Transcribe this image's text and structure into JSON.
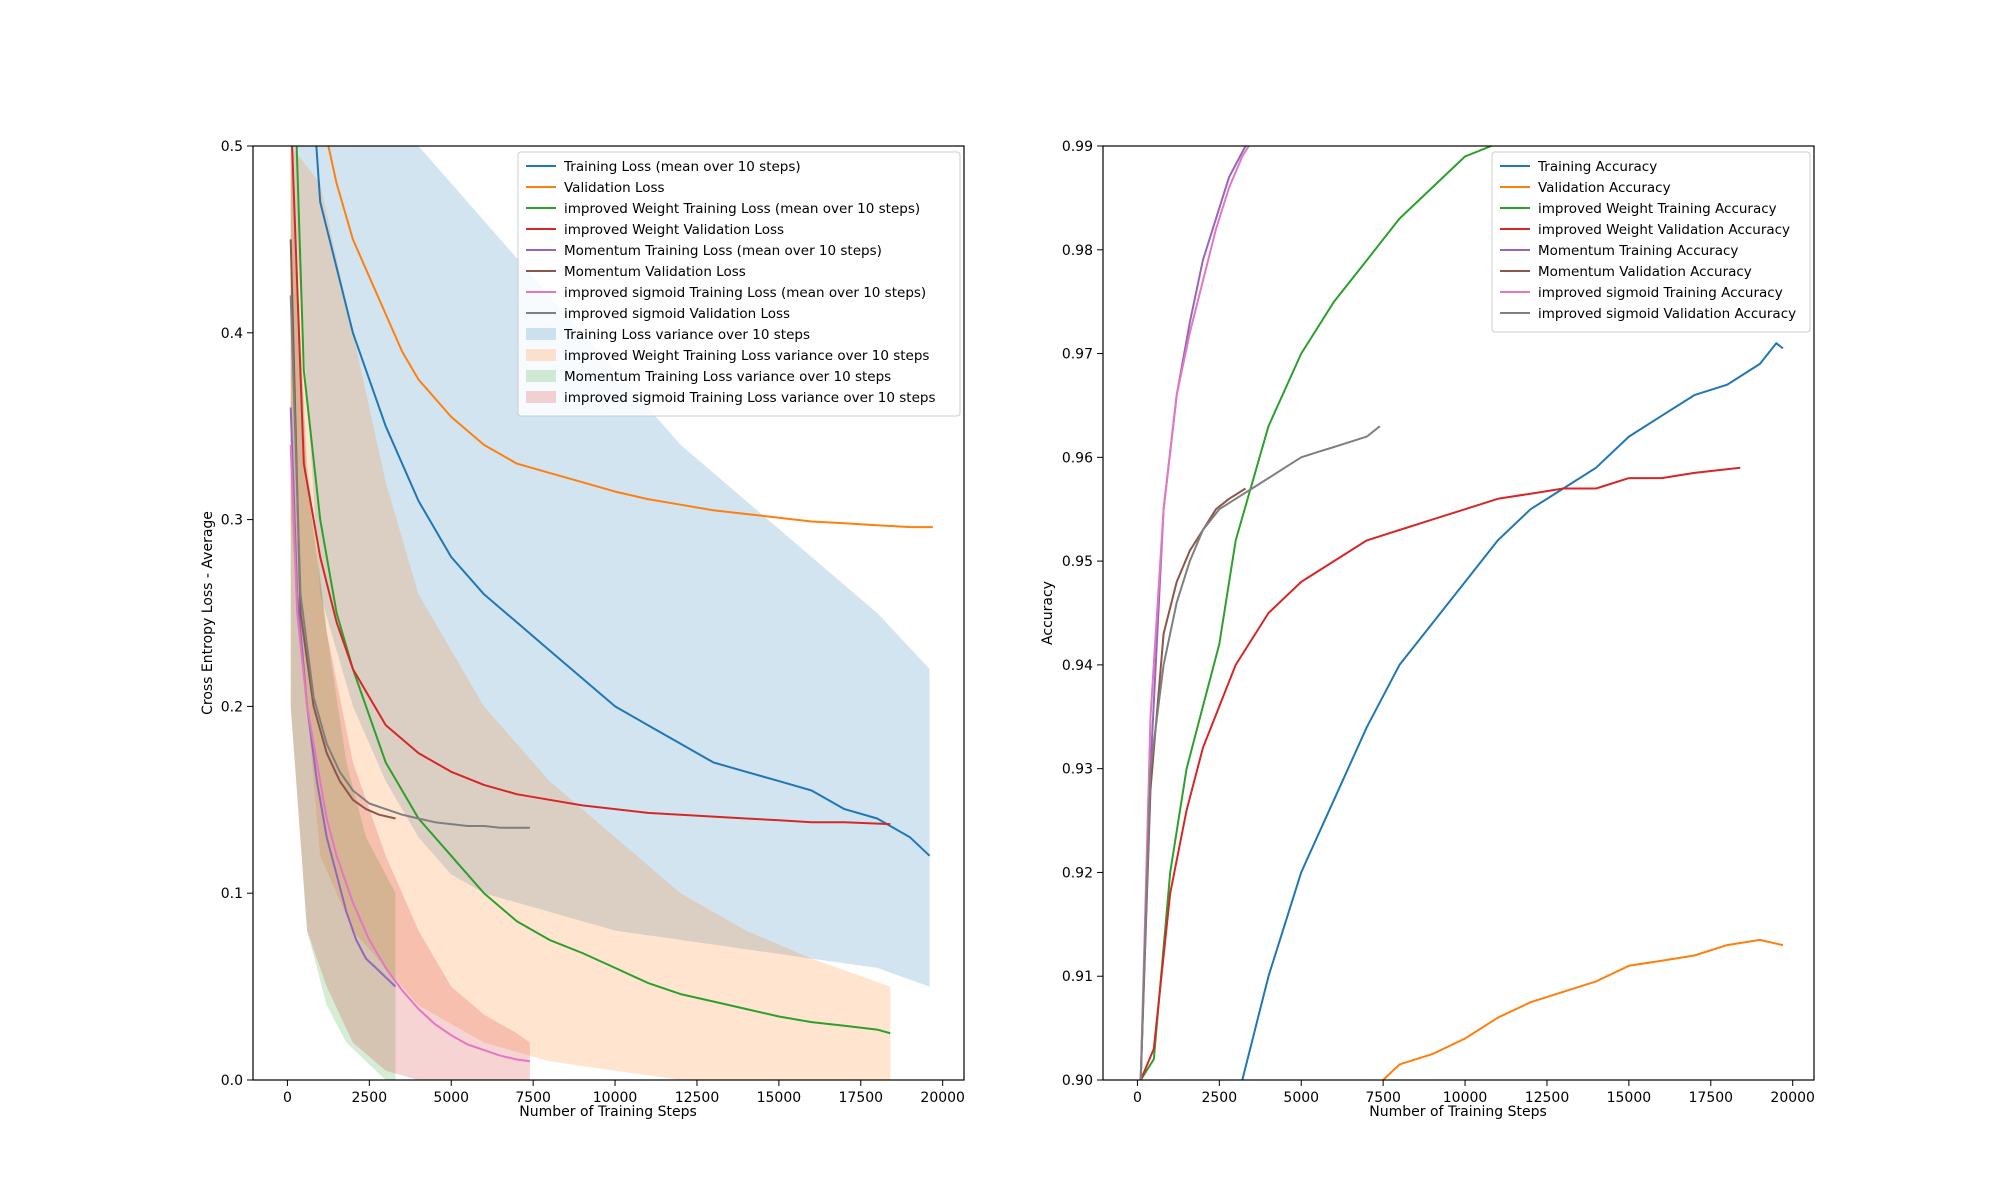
{
  "chart_data": [
    {
      "type": "line",
      "title": "",
      "xlabel": "Number of Training Steps",
      "ylabel": "Cross Entropy Loss - Average",
      "xlim": [
        -1050,
        20650
      ],
      "ylim": [
        0.0,
        0.5
      ],
      "xticks": [
        0,
        2500,
        5000,
        7500,
        10000,
        12500,
        15000,
        17500,
        20000
      ],
      "yticks": [
        0.0,
        0.1,
        0.2,
        0.3,
        0.4,
        0.5
      ],
      "grid": false,
      "legend_position": "top-right",
      "series": [
        {
          "name": "Training Loss (mean over 10 steps)",
          "color": "#1f77b4",
          "kind": "line",
          "x": [
            100,
            1000,
            2000,
            3000,
            4000,
            5000,
            6000,
            7000,
            8000,
            9000,
            10000,
            11000,
            12000,
            13000,
            14000,
            15000,
            16000,
            17000,
            18000,
            19000,
            19600
          ],
          "y": [
            0.7,
            0.47,
            0.4,
            0.35,
            0.31,
            0.28,
            0.26,
            0.245,
            0.23,
            0.215,
            0.2,
            0.19,
            0.18,
            0.17,
            0.165,
            0.16,
            0.155,
            0.145,
            0.14,
            0.13,
            0.12
          ]
        },
        {
          "name": "Validation Loss",
          "color": "#ff7f0e",
          "kind": "line",
          "x": [
            500,
            1000,
            1500,
            2000,
            2500,
            3000,
            3500,
            4000,
            5000,
            6000,
            7000,
            8000,
            9000,
            10000,
            11000,
            12000,
            13000,
            14000,
            15000,
            16000,
            17000,
            18000,
            19000,
            19700
          ],
          "y": [
            0.62,
            0.52,
            0.48,
            0.45,
            0.43,
            0.41,
            0.39,
            0.375,
            0.355,
            0.34,
            0.33,
            0.325,
            0.32,
            0.315,
            0.311,
            0.308,
            0.305,
            0.303,
            0.301,
            0.299,
            0.298,
            0.297,
            0.296,
            0.296
          ]
        },
        {
          "name": "improved Weight Training Loss (mean over 10 steps)",
          "color": "#2ca02c",
          "kind": "line",
          "x": [
            100,
            500,
            1000,
            1500,
            2000,
            3000,
            4000,
            5000,
            6000,
            7000,
            8000,
            9000,
            10000,
            11000,
            12000,
            13000,
            14000,
            15000,
            16000,
            17000,
            18000,
            18400
          ],
          "y": [
            0.6,
            0.38,
            0.3,
            0.25,
            0.22,
            0.17,
            0.14,
            0.12,
            0.1,
            0.085,
            0.075,
            0.068,
            0.06,
            0.052,
            0.046,
            0.042,
            0.038,
            0.034,
            0.031,
            0.029,
            0.027,
            0.025
          ]
        },
        {
          "name": "improved Weight Validation Loss",
          "color": "#d62728",
          "kind": "line",
          "x": [
            100,
            500,
            1000,
            1500,
            2000,
            2500,
            3000,
            4000,
            5000,
            6000,
            7000,
            8000,
            9000,
            10000,
            11000,
            12000,
            13000,
            14000,
            15000,
            16000,
            17000,
            18400
          ],
          "y": [
            0.52,
            0.33,
            0.28,
            0.245,
            0.22,
            0.205,
            0.19,
            0.175,
            0.165,
            0.158,
            0.153,
            0.15,
            0.147,
            0.145,
            0.143,
            0.142,
            0.141,
            0.14,
            0.139,
            0.138,
            0.138,
            0.137
          ]
        },
        {
          "name": "Momentum Training Loss (mean over 10 steps)",
          "color": "#9467bd",
          "kind": "line",
          "x": [
            100,
            300,
            600,
            900,
            1200,
            1500,
            1800,
            2100,
            2400,
            2700,
            3000,
            3300
          ],
          "y": [
            0.36,
            0.26,
            0.2,
            0.16,
            0.13,
            0.11,
            0.09,
            0.075,
            0.065,
            0.06,
            0.055,
            0.05
          ]
        },
        {
          "name": "Momentum Validation Loss",
          "color": "#8c564b",
          "kind": "line",
          "x": [
            100,
            400,
            800,
            1200,
            1600,
            2000,
            2400,
            2800,
            3300
          ],
          "y": [
            0.45,
            0.25,
            0.2,
            0.175,
            0.16,
            0.15,
            0.145,
            0.142,
            0.14
          ]
        },
        {
          "name": "improved sigmoid Training Loss (mean over 10 steps)",
          "color": "#e377c2",
          "kind": "line",
          "x": [
            100,
            300,
            600,
            900,
            1200,
            1500,
            2000,
            2500,
            3000,
            3500,
            4000,
            4500,
            5000,
            5500,
            6000,
            6500,
            7000,
            7400
          ],
          "y": [
            0.34,
            0.25,
            0.2,
            0.17,
            0.14,
            0.12,
            0.095,
            0.075,
            0.06,
            0.048,
            0.038,
            0.03,
            0.024,
            0.019,
            0.016,
            0.013,
            0.011,
            0.01
          ]
        },
        {
          "name": "improved sigmoid Validation Loss",
          "color": "#7f7f7f",
          "kind": "line",
          "x": [
            100,
            400,
            800,
            1200,
            1600,
            2000,
            2500,
            3000,
            3500,
            4000,
            4500,
            5000,
            5500,
            6000,
            6500,
            7000,
            7400
          ],
          "y": [
            0.42,
            0.26,
            0.205,
            0.18,
            0.165,
            0.155,
            0.148,
            0.145,
            0.142,
            0.14,
            0.138,
            0.137,
            0.136,
            0.136,
            0.135,
            0.135,
            0.135
          ]
        },
        {
          "name": "Training Loss variance over 10 steps",
          "color": "#1f77b4",
          "kind": "band",
          "x": [
            100,
            1000,
            2000,
            3000,
            4000,
            5000,
            6000,
            8000,
            10000,
            12000,
            14000,
            16000,
            18000,
            19600
          ],
          "lower": [
            0.5,
            0.26,
            0.2,
            0.16,
            0.13,
            0.11,
            0.1,
            0.09,
            0.08,
            0.075,
            0.07,
            0.065,
            0.06,
            0.05
          ],
          "upper": [
            0.5,
            0.5,
            0.5,
            0.5,
            0.5,
            0.48,
            0.46,
            0.42,
            0.38,
            0.34,
            0.31,
            0.28,
            0.25,
            0.22
          ]
        },
        {
          "name": "improved Weight Training Loss variance over 10 steps",
          "color": "#ff7f0e",
          "kind": "band",
          "x": [
            100,
            1000,
            2000,
            3000,
            4000,
            6000,
            8000,
            10000,
            12000,
            14000,
            16000,
            18400
          ],
          "lower": [
            0.3,
            0.12,
            0.08,
            0.06,
            0.04,
            0.02,
            0.01,
            0.005,
            0.0,
            0.0,
            0.0,
            0.0
          ],
          "upper": [
            0.5,
            0.48,
            0.4,
            0.32,
            0.26,
            0.2,
            0.16,
            0.13,
            0.1,
            0.08,
            0.065,
            0.05
          ]
        },
        {
          "name": "Momentum Training Loss variance over 10 steps",
          "color": "#2ca02c",
          "kind": "band",
          "x": [
            100,
            600,
            1200,
            1800,
            2400,
            3000,
            3300
          ],
          "lower": [
            0.2,
            0.08,
            0.04,
            0.02,
            0.01,
            0.0,
            0.0
          ],
          "upper": [
            0.5,
            0.33,
            0.24,
            0.17,
            0.13,
            0.11,
            0.1
          ]
        },
        {
          "name": "improved sigmoid Training Loss variance over 10 steps",
          "color": "#d62728",
          "kind": "band",
          "x": [
            100,
            600,
            1200,
            2000,
            3000,
            4000,
            5000,
            6000,
            7000,
            7400
          ],
          "lower": [
            0.2,
            0.08,
            0.05,
            0.02,
            0.005,
            0.0,
            0.0,
            0.0,
            0.0,
            0.0
          ],
          "upper": [
            0.5,
            0.32,
            0.24,
            0.17,
            0.12,
            0.08,
            0.05,
            0.035,
            0.025,
            0.02
          ]
        }
      ]
    },
    {
      "type": "line",
      "title": "",
      "xlabel": "Number of Training Steps",
      "ylabel": "Accuracy",
      "xlim": [
        -1050,
        20650
      ],
      "ylim": [
        0.9,
        0.99
      ],
      "xticks": [
        0,
        2500,
        5000,
        7500,
        10000,
        12500,
        15000,
        17500,
        20000
      ],
      "yticks": [
        0.9,
        0.91,
        0.92,
        0.93,
        0.94,
        0.95,
        0.96,
        0.97,
        0.98,
        0.99
      ],
      "grid": false,
      "legend_position": "top-right",
      "series": [
        {
          "name": "Training Accuracy",
          "color": "#1f77b4",
          "kind": "line",
          "x": [
            3200,
            4000,
            5000,
            6000,
            7000,
            8000,
            9000,
            10000,
            11000,
            12000,
            13000,
            14000,
            15000,
            16000,
            17000,
            18000,
            19000,
            19500,
            19700
          ],
          "y": [
            0.9,
            0.91,
            0.92,
            0.927,
            0.934,
            0.94,
            0.944,
            0.948,
            0.952,
            0.955,
            0.957,
            0.959,
            0.962,
            0.964,
            0.966,
            0.967,
            0.969,
            0.971,
            0.9705
          ]
        },
        {
          "name": "Validation Accuracy",
          "color": "#ff7f0e",
          "kind": "line",
          "x": [
            7500,
            8000,
            9000,
            10000,
            11000,
            12000,
            13000,
            14000,
            15000,
            16000,
            17000,
            18000,
            19000,
            19700
          ],
          "y": [
            0.9,
            0.9015,
            0.9025,
            0.904,
            0.906,
            0.9075,
            0.9085,
            0.9095,
            0.911,
            0.9115,
            0.912,
            0.913,
            0.9135,
            0.913
          ]
        },
        {
          "name": "improved Weight Training Accuracy",
          "color": "#2ca02c",
          "kind": "line",
          "x": [
            100,
            500,
            1000,
            1500,
            2000,
            2500,
            3000,
            4000,
            5000,
            6000,
            7000,
            8000,
            9000,
            10000,
            10800
          ],
          "y": [
            0.9,
            0.902,
            0.92,
            0.93,
            0.936,
            0.942,
            0.952,
            0.963,
            0.97,
            0.975,
            0.979,
            0.983,
            0.986,
            0.989,
            0.99
          ]
        },
        {
          "name": "improved Weight Validation Accuracy",
          "color": "#d62728",
          "kind": "line",
          "x": [
            100,
            500,
            1000,
            1500,
            2000,
            2500,
            3000,
            4000,
            5000,
            6000,
            7000,
            8000,
            9000,
            10000,
            11000,
            12000,
            13000,
            14000,
            15000,
            16000,
            17000,
            18400
          ],
          "y": [
            0.9,
            0.903,
            0.918,
            0.926,
            0.932,
            0.936,
            0.94,
            0.945,
            0.948,
            0.95,
            0.952,
            0.953,
            0.954,
            0.955,
            0.956,
            0.9565,
            0.957,
            0.957,
            0.958,
            0.958,
            0.9585,
            0.959
          ]
        },
        {
          "name": "Momentum Training Accuracy",
          "color": "#9467bd",
          "kind": "line",
          "x": [
            100,
            400,
            800,
            1200,
            1600,
            2000,
            2400,
            2800,
            3300
          ],
          "y": [
            0.9,
            0.93,
            0.955,
            0.966,
            0.973,
            0.979,
            0.983,
            0.987,
            0.99
          ]
        },
        {
          "name": "Momentum Validation Accuracy",
          "color": "#8c564b",
          "kind": "line",
          "x": [
            100,
            400,
            800,
            1200,
            1600,
            2000,
            2400,
            2800,
            3300
          ],
          "y": [
            0.9,
            0.928,
            0.943,
            0.948,
            0.951,
            0.953,
            0.955,
            0.956,
            0.957
          ]
        },
        {
          "name": "improved sigmoid Training Accuracy",
          "color": "#e377c2",
          "kind": "line",
          "x": [
            100,
            400,
            800,
            1200,
            1600,
            2000,
            2400,
            2800,
            3200,
            3400
          ],
          "y": [
            0.9,
            0.935,
            0.955,
            0.966,
            0.972,
            0.977,
            0.982,
            0.986,
            0.989,
            0.99
          ]
        },
        {
          "name": "improved sigmoid Validation Accuracy",
          "color": "#7f7f7f",
          "kind": "line",
          "x": [
            100,
            400,
            800,
            1200,
            1600,
            2000,
            2500,
            3000,
            3500,
            4000,
            4500,
            5000,
            5500,
            6000,
            6500,
            7000,
            7400
          ],
          "y": [
            0.9,
            0.93,
            0.94,
            0.946,
            0.95,
            0.953,
            0.955,
            0.956,
            0.957,
            0.958,
            0.959,
            0.96,
            0.9605,
            0.961,
            0.9615,
            0.962,
            0.963
          ]
        }
      ]
    }
  ]
}
